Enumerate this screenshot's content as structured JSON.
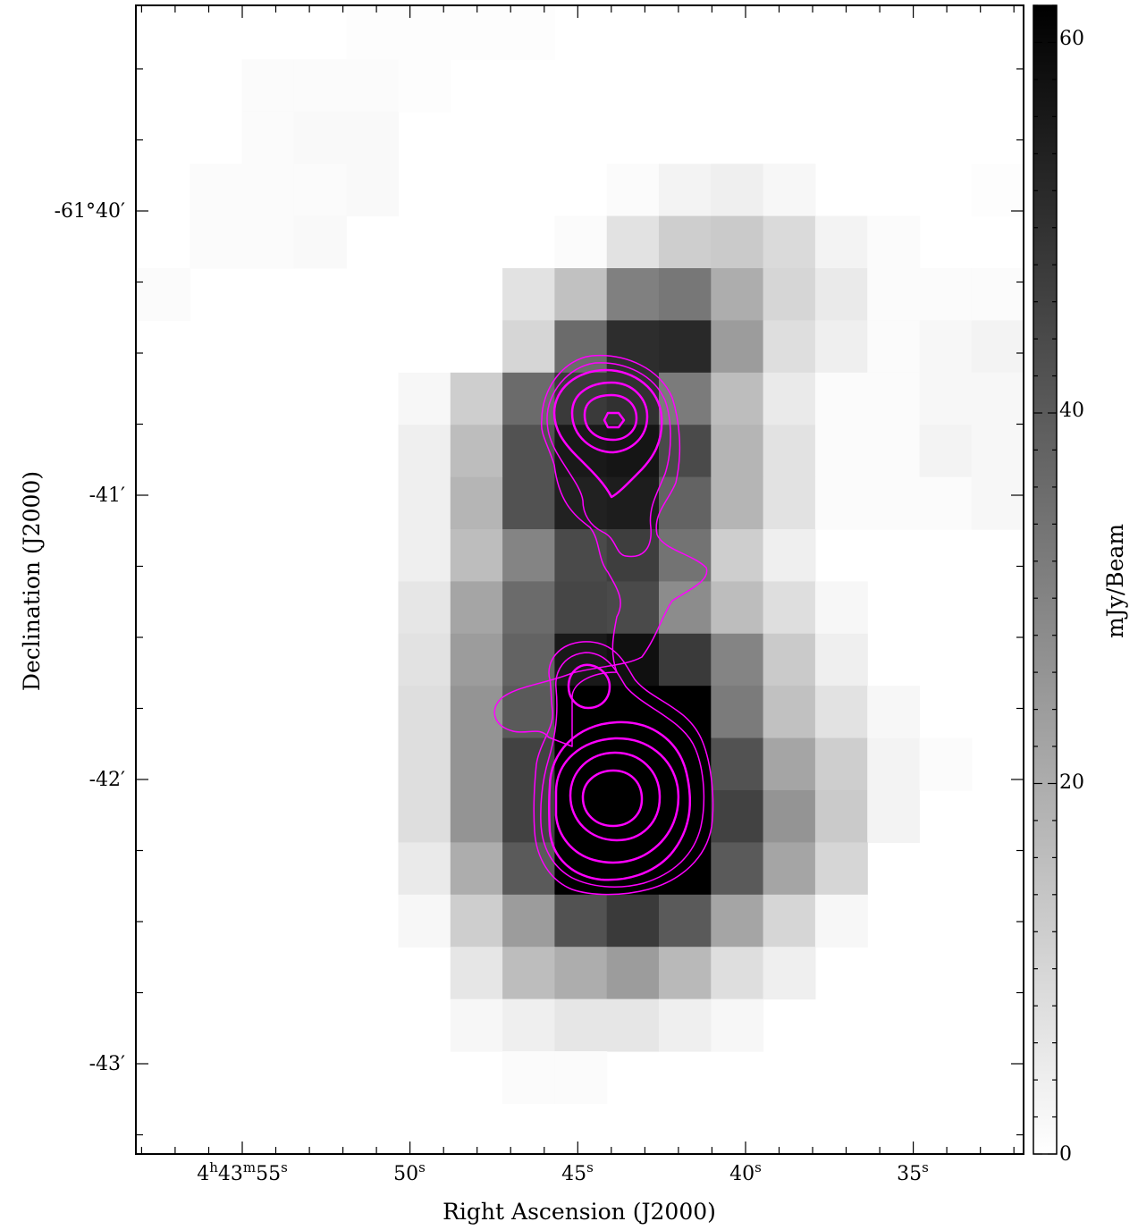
{
  "chart_data": {
    "type": "heatmap",
    "xlabel": "Right Ascension (J2000)",
    "ylabel": "Declination (J2000)",
    "colorbar_label": "mJy/Beam",
    "colormap": [
      "#ffffff",
      "#000000"
    ],
    "contour_color": "#ff00ff",
    "x_ticks": [
      {
        "label_h": "4",
        "label_m": "43",
        "label_s": "55",
        "full": "4h43m55s"
      },
      {
        "label_s": "50",
        "full": "50s"
      },
      {
        "label_s": "45",
        "full": "45s"
      },
      {
        "label_s": "40",
        "full": "40s"
      },
      {
        "label_s": "35",
        "full": "35s"
      }
    ],
    "y_ticks": [
      "-61°40′",
      "-41′",
      "-42′",
      "-43′"
    ],
    "colorbar_range": [
      0,
      62
    ],
    "colorbar_ticks": [
      "0",
      "20",
      "40",
      "60"
    ],
    "grid": {
      "columns": 17,
      "rows": 21,
      "cells": [
        [
          0,
          0,
          0,
          0,
          0.5,
          0.5,
          0.5,
          0.5,
          0,
          0,
          0,
          0,
          0,
          0,
          0,
          0,
          0
        ],
        [
          0,
          0,
          1,
          1,
          1,
          0.5,
          0,
          0,
          0,
          0,
          0,
          0,
          0,
          0,
          0,
          0,
          0
        ],
        [
          0,
          0,
          1,
          1.5,
          1.5,
          0,
          0,
          0,
          0,
          0,
          0,
          0,
          0,
          0,
          0,
          0,
          0
        ],
        [
          0,
          1,
          1,
          1,
          1.5,
          0,
          0,
          0,
          0,
          1,
          3,
          4,
          2,
          0,
          0,
          0,
          0.5
        ],
        [
          0,
          1,
          1,
          1.5,
          0,
          0,
          0,
          0,
          1,
          7,
          12,
          13,
          9,
          3,
          1,
          0,
          0
        ],
        [
          1,
          0,
          0,
          0,
          0,
          0,
          0,
          7,
          15,
          31,
          33,
          20,
          10,
          5,
          1,
          1,
          1
        ],
        [
          0,
          0,
          0,
          0,
          0,
          0,
          0,
          10,
          36,
          51,
          52,
          24,
          8,
          4,
          1,
          2,
          3
        ],
        [
          0,
          0,
          0,
          0,
          0,
          2,
          12,
          36,
          48,
          50,
          32,
          16,
          5,
          1,
          1,
          2,
          2
        ],
        [
          0,
          0,
          0,
          0,
          0,
          4,
          16,
          42,
          56,
          57,
          44,
          18,
          7,
          1,
          1,
          3,
          2
        ],
        [
          0,
          0,
          0,
          0,
          0,
          4,
          18,
          42,
          54,
          55,
          38,
          18,
          7,
          1,
          1,
          1,
          2
        ],
        [
          0,
          0,
          0,
          0,
          0,
          4,
          16,
          30,
          44,
          47,
          34,
          12,
          4,
          0,
          0,
          0,
          0
        ],
        [
          0,
          0,
          0,
          0,
          0,
          6,
          22,
          36,
          45,
          44,
          28,
          16,
          8,
          2,
          0,
          0,
          0
        ],
        [
          0,
          0,
          0,
          0,
          0,
          7,
          24,
          38,
          56,
          58,
          48,
          30,
          13,
          4,
          0,
          0,
          0
        ],
        [
          0,
          0,
          0,
          0,
          0,
          8,
          26,
          40,
          62,
          62,
          62,
          32,
          15,
          7,
          2,
          0,
          0
        ],
        [
          0,
          0,
          0,
          0,
          0,
          8,
          26,
          46,
          62,
          62,
          62,
          42,
          22,
          12,
          3,
          1,
          0
        ],
        [
          0,
          0,
          0,
          0,
          0,
          8,
          26,
          46,
          62,
          62,
          62,
          46,
          26,
          13,
          3,
          0,
          0
        ],
        [
          0,
          0,
          0,
          0,
          0,
          5,
          20,
          40,
          62,
          62,
          62,
          40,
          22,
          10,
          0,
          0,
          0
        ],
        [
          0,
          0,
          0,
          0,
          0,
          2,
          12,
          24,
          42,
          48,
          40,
          22,
          10,
          2,
          0,
          0,
          0
        ],
        [
          0,
          0,
          0,
          0,
          0,
          0,
          6,
          16,
          20,
          24,
          17,
          8,
          4,
          0,
          0,
          0,
          0
        ],
        [
          0,
          0,
          0,
          0,
          0,
          0,
          2,
          4,
          6,
          6,
          4,
          2,
          0,
          0,
          0,
          0,
          0
        ],
        [
          0,
          0,
          0,
          0,
          0,
          0,
          0,
          1,
          1,
          0,
          0,
          0,
          0,
          0,
          0,
          0,
          0
        ]
      ]
    }
  }
}
